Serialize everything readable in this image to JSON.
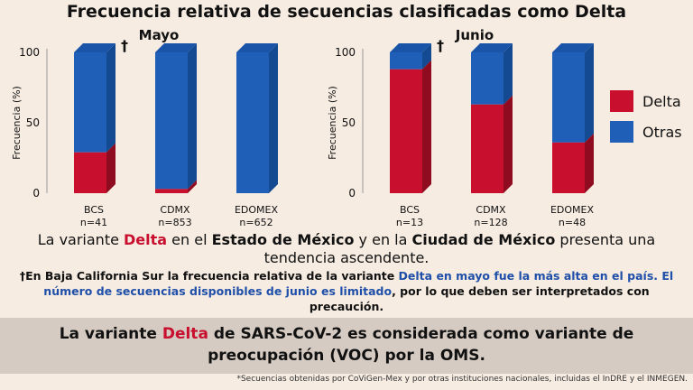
{
  "title": "Frecuencia relativa de secuencias clasificadas como Delta",
  "colors": {
    "delta": "#c8102e",
    "delta_dark": "#8e0b20",
    "otras": "#1f5fb8",
    "otras_dark": "#144a92",
    "otras_top": "#1a54a8"
  },
  "legend": [
    {
      "label": "Delta",
      "color": "#c8102e"
    },
    {
      "label": "Otras",
      "color": "#1f5fb8"
    }
  ],
  "statement": {
    "part1": "La variante ",
    "delta": "Delta",
    "part2": " en el ",
    "edo": "Estado de México",
    "part3": " y en la ",
    "cdmx": "Ciudad de México",
    "part4": " presenta una tendencia ascendente."
  },
  "note": {
    "part1": "†En Baja California Sur la frecuencia relativa de la variante ",
    "blue1": "Delta en mayo fue la más alta en el país. El número de secuencias disponibles de junio es limitado",
    "part2": ", por lo que deben ser interpretados con precaución."
  },
  "band": {
    "part1": "La variante ",
    "delta": "Delta",
    "part2": " de SARS-CoV-2 es considerada como variante de preocupación (VOC) por la OMS."
  },
  "footnote": "*Secuencias obtenidas por CoViGen-Mex y por otras instituciones nacionales, incluidas el InDRE y el INMEGEN.",
  "chart_data": [
    {
      "type": "bar",
      "title": "Mayo",
      "ylabel": "Frecuencia (%)",
      "ylim": [
        0,
        100
      ],
      "yticks": [
        0,
        50,
        100
      ],
      "categories": [
        "BCS",
        "CDMX",
        "EDOMEX"
      ],
      "counts": [
        "n=41",
        "n=853",
        "n=652"
      ],
      "dagger_on": "BCS",
      "dagger": "†",
      "series": [
        {
          "name": "Delta",
          "values": [
            29,
            3,
            0
          ]
        },
        {
          "name": "Otras",
          "values": [
            71,
            97,
            100
          ]
        }
      ]
    },
    {
      "type": "bar",
      "title": "Junio",
      "ylabel": "Frecuencia (%)",
      "ylim": [
        0,
        100
      ],
      "yticks": [
        0,
        50,
        100
      ],
      "categories": [
        "BCS",
        "CDMX",
        "EDOMEX"
      ],
      "counts": [
        "n=13",
        "n=128",
        "n=48"
      ],
      "dagger_on": "BCS",
      "dagger": "†",
      "series": [
        {
          "name": "Delta",
          "values": [
            88,
            63,
            36
          ]
        },
        {
          "name": "Otras",
          "values": [
            12,
            37,
            64
          ]
        }
      ]
    }
  ]
}
